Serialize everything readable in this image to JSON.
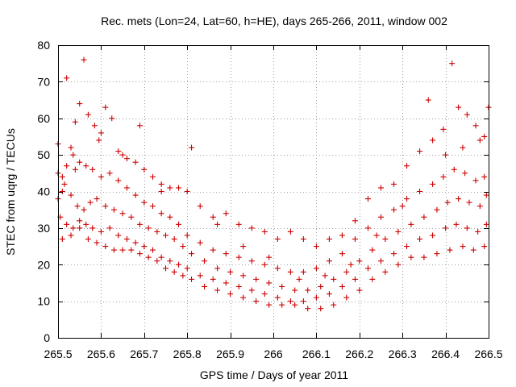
{
  "chart_data": {
    "type": "scatter",
    "title": "Rec. mets (Lon=24, Lat=60, h=HE), days 265-266, 2011, window 002",
    "xlabel": "GPS time / Days of year 2011",
    "ylabel": "STEC from uqrg / TECUs",
    "xlim": [
      265.5,
      266.5
    ],
    "ylim": [
      0,
      80
    ],
    "xticks": [
      265.5,
      265.6,
      265.7,
      265.8,
      265.9,
      266.0,
      266.1,
      266.2,
      266.3,
      266.4,
      266.5
    ],
    "xtick_labels": [
      "265.5",
      "265.6",
      "265.7",
      "265.8",
      "265.9",
      "266",
      "266.1",
      "266.2",
      "266.3",
      "266.4",
      "266.5"
    ],
    "yticks": [
      0,
      10,
      20,
      30,
      40,
      50,
      60,
      70,
      80
    ],
    "ytick_labels": [
      "0",
      "10",
      "20",
      "30",
      "40",
      "50",
      "60",
      "70",
      "80"
    ],
    "grid": true,
    "marker": "plus",
    "marker_color": "#cc0000",
    "series": [
      {
        "points": [
          [
            265.5,
            53
          ],
          [
            265.51,
            44
          ],
          [
            265.52,
            71
          ],
          [
            265.53,
            52
          ],
          [
            265.54,
            59
          ],
          [
            265.55,
            64
          ],
          [
            265.56,
            76
          ],
          [
            265.57,
            61
          ],
          [
            265.585,
            58
          ],
          [
            265.595,
            54
          ],
          [
            265.61,
            63
          ],
          [
            265.625,
            60
          ],
          [
            265.64,
            51
          ],
          [
            265.66,
            49
          ],
          [
            265.68,
            48
          ],
          [
            265.7,
            46
          ],
          [
            265.72,
            44
          ],
          [
            265.74,
            42
          ],
          [
            265.76,
            41
          ],
          [
            265.78,
            41
          ],
          [
            265.8,
            40
          ],
          [
            265.83,
            36
          ],
          [
            265.86,
            33
          ],
          [
            265.89,
            34
          ],
          [
            265.92,
            31
          ],
          [
            265.95,
            30
          ],
          [
            265.98,
            29
          ],
          [
            266.01,
            27
          ],
          [
            266.04,
            29
          ],
          [
            266.07,
            27
          ],
          [
            266.1,
            25
          ],
          [
            266.13,
            27
          ],
          [
            266.16,
            28
          ],
          [
            266.19,
            32
          ],
          [
            266.22,
            38
          ],
          [
            266.25,
            41
          ],
          [
            266.28,
            42
          ],
          [
            266.31,
            47
          ],
          [
            266.34,
            51
          ],
          [
            266.37,
            54
          ],
          [
            266.395,
            57
          ],
          [
            266.415,
            75
          ],
          [
            266.43,
            63
          ],
          [
            266.45,
            61
          ],
          [
            266.47,
            58
          ],
          [
            266.49,
            55
          ],
          [
            265.5,
            45
          ],
          [
            265.51,
            40
          ],
          [
            265.52,
            47
          ],
          [
            265.535,
            50
          ],
          [
            265.55,
            48
          ],
          [
            265.565,
            47
          ],
          [
            265.58,
            46
          ],
          [
            265.6,
            44
          ],
          [
            265.62,
            45
          ],
          [
            265.64,
            43
          ],
          [
            265.66,
            41
          ],
          [
            265.68,
            39
          ],
          [
            265.7,
            37
          ],
          [
            265.72,
            36
          ],
          [
            265.74,
            34
          ],
          [
            265.76,
            33
          ],
          [
            265.78,
            31
          ],
          [
            265.8,
            28
          ],
          [
            265.83,
            26
          ],
          [
            265.86,
            24
          ],
          [
            265.89,
            23
          ],
          [
            265.92,
            22
          ],
          [
            265.95,
            21
          ],
          [
            265.98,
            20
          ],
          [
            266.01,
            19
          ],
          [
            266.04,
            18
          ],
          [
            266.07,
            18
          ],
          [
            266.1,
            19
          ],
          [
            266.13,
            21
          ],
          [
            266.16,
            23
          ],
          [
            266.19,
            27
          ],
          [
            266.22,
            30
          ],
          [
            266.25,
            33
          ],
          [
            266.28,
            35
          ],
          [
            266.31,
            38
          ],
          [
            266.34,
            40
          ],
          [
            266.37,
            42
          ],
          [
            266.395,
            44
          ],
          [
            266.42,
            46
          ],
          [
            266.445,
            45
          ],
          [
            266.47,
            43
          ],
          [
            266.49,
            44
          ],
          [
            265.5,
            38
          ],
          [
            265.515,
            42
          ],
          [
            265.53,
            39
          ],
          [
            265.545,
            36
          ],
          [
            265.56,
            35
          ],
          [
            265.575,
            37
          ],
          [
            265.59,
            38
          ],
          [
            265.61,
            36
          ],
          [
            265.63,
            35
          ],
          [
            265.65,
            34
          ],
          [
            265.67,
            33
          ],
          [
            265.69,
            31
          ],
          [
            265.71,
            30
          ],
          [
            265.73,
            29
          ],
          [
            265.75,
            28
          ],
          [
            265.77,
            27
          ],
          [
            265.79,
            25
          ],
          [
            265.81,
            23
          ],
          [
            265.84,
            21
          ],
          [
            265.87,
            19
          ],
          [
            265.9,
            18
          ],
          [
            265.93,
            17
          ],
          [
            265.96,
            16
          ],
          [
            265.99,
            15
          ],
          [
            266.02,
            14
          ],
          [
            266.05,
            13
          ],
          [
            266.08,
            13
          ],
          [
            266.11,
            14
          ],
          [
            266.14,
            16
          ],
          [
            266.17,
            18
          ],
          [
            266.2,
            21
          ],
          [
            266.23,
            24
          ],
          [
            266.26,
            27
          ],
          [
            266.29,
            29
          ],
          [
            266.32,
            31
          ],
          [
            266.35,
            33
          ],
          [
            266.38,
            35
          ],
          [
            266.405,
            37
          ],
          [
            266.43,
            38
          ],
          [
            266.455,
            37
          ],
          [
            266.48,
            36
          ],
          [
            266.495,
            39
          ],
          [
            265.505,
            33
          ],
          [
            265.52,
            31
          ],
          [
            265.535,
            30
          ],
          [
            265.55,
            32
          ],
          [
            265.565,
            31
          ],
          [
            265.58,
            30
          ],
          [
            265.6,
            29
          ],
          [
            265.62,
            30
          ],
          [
            265.64,
            28
          ],
          [
            265.66,
            27
          ],
          [
            265.68,
            26
          ],
          [
            265.7,
            25
          ],
          [
            265.72,
            24
          ],
          [
            265.74,
            22
          ],
          [
            265.76,
            21
          ],
          [
            265.78,
            20
          ],
          [
            265.8,
            19
          ],
          [
            265.83,
            17
          ],
          [
            265.86,
            16
          ],
          [
            265.89,
            15
          ],
          [
            265.92,
            14
          ],
          [
            265.95,
            13
          ],
          [
            265.98,
            12
          ],
          [
            266.01,
            11
          ],
          [
            266.04,
            10
          ],
          [
            266.07,
            10
          ],
          [
            266.1,
            11
          ],
          [
            266.13,
            12
          ],
          [
            266.16,
            14
          ],
          [
            266.19,
            16
          ],
          [
            266.22,
            19
          ],
          [
            266.25,
            21
          ],
          [
            266.28,
            23
          ],
          [
            266.31,
            25
          ],
          [
            266.34,
            27
          ],
          [
            266.37,
            28
          ],
          [
            266.4,
            30
          ],
          [
            266.425,
            31
          ],
          [
            266.45,
            30
          ],
          [
            266.475,
            29
          ],
          [
            266.495,
            31
          ],
          [
            265.51,
            27
          ],
          [
            265.53,
            28
          ],
          [
            265.55,
            30
          ],
          [
            265.57,
            27
          ],
          [
            265.59,
            26
          ],
          [
            265.61,
            25
          ],
          [
            265.63,
            24
          ],
          [
            265.65,
            24
          ],
          [
            265.67,
            24
          ],
          [
            265.69,
            23
          ],
          [
            265.71,
            22
          ],
          [
            265.73,
            21
          ],
          [
            265.75,
            19
          ],
          [
            265.77,
            18
          ],
          [
            265.79,
            17
          ],
          [
            265.81,
            16
          ],
          [
            265.84,
            14
          ],
          [
            265.87,
            13
          ],
          [
            265.9,
            12
          ],
          [
            265.93,
            11
          ],
          [
            265.96,
            10
          ],
          [
            265.99,
            9
          ],
          [
            266.02,
            9
          ],
          [
            266.05,
            9
          ],
          [
            266.08,
            8
          ],
          [
            266.11,
            8
          ],
          [
            266.14,
            9
          ],
          [
            266.17,
            11
          ],
          [
            266.2,
            13
          ],
          [
            266.23,
            16
          ],
          [
            266.26,
            18
          ],
          [
            266.29,
            20
          ],
          [
            266.32,
            22
          ],
          [
            266.35,
            22
          ],
          [
            266.38,
            23
          ],
          [
            266.41,
            24
          ],
          [
            266.44,
            25
          ],
          [
            266.465,
            24
          ],
          [
            266.49,
            25
          ],
          [
            265.54,
            46
          ],
          [
            265.6,
            56
          ],
          [
            265.65,
            50
          ],
          [
            265.69,
            58
          ],
          [
            265.74,
            40
          ],
          [
            265.81,
            52
          ],
          [
            265.87,
            31
          ],
          [
            265.93,
            25
          ],
          [
            265.99,
            22
          ],
          [
            266.06,
            16
          ],
          [
            266.12,
            17
          ],
          [
            266.18,
            20
          ],
          [
            266.24,
            28
          ],
          [
            266.3,
            36
          ],
          [
            266.36,
            65
          ],
          [
            266.4,
            50
          ],
          [
            266.44,
            52
          ],
          [
            266.48,
            54
          ],
          [
            266.5,
            63
          ]
        ]
      }
    ]
  }
}
